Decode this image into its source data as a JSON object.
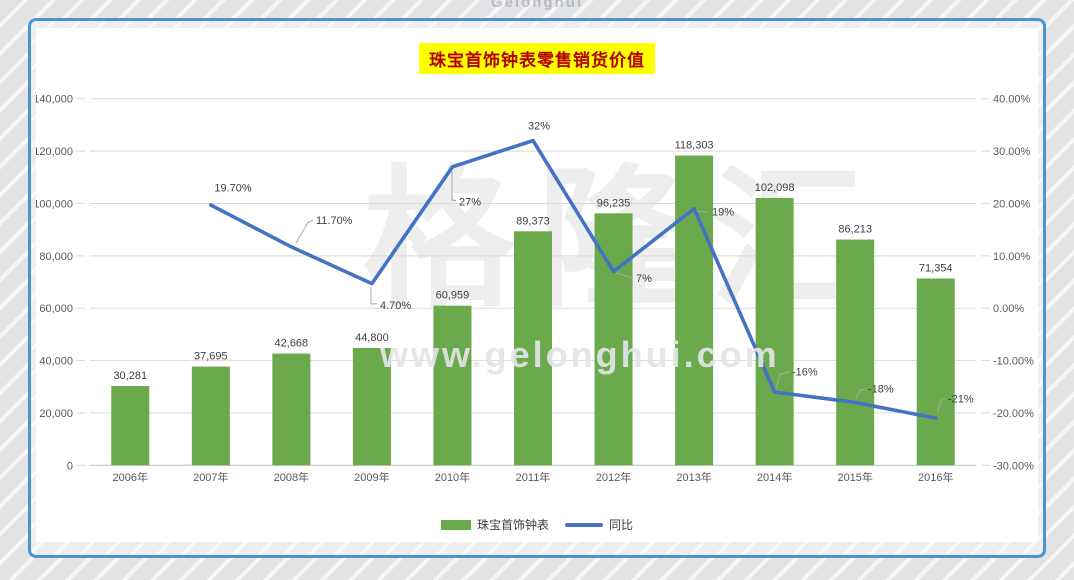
{
  "watermarks": {
    "top": "Gelonghui",
    "brand": "格隆汇",
    "url": "www.gelonghui.com"
  },
  "colors": {
    "bar_green": "#6aaa4d",
    "line_blue": "#4472c4",
    "title_text": "#b30000",
    "title_highlight": "#ffff00",
    "card_border": "#4f93ce",
    "gridline": "#d9d9d9",
    "axis_text": "#595959",
    "data_label_text": "#3f3f3f"
  },
  "chart_data": {
    "type": "combo-bar-line",
    "title": "珠宝首饰钟表零售销货价值",
    "categories": [
      "2006年",
      "2007年",
      "2008年",
      "2009年",
      "2010年",
      "2011年",
      "2012年",
      "2013年",
      "2014年",
      "2015年",
      "2016年"
    ],
    "series": [
      {
        "name": "珠宝首饰钟表",
        "type": "bar",
        "axis": "left",
        "color": "#6aaa4d",
        "values": [
          30281,
          37695,
          42668,
          44800,
          60959,
          89373,
          96235,
          118303,
          102098,
          86213,
          71354
        ],
        "labels": [
          "30,281",
          "37,695",
          "42,668",
          "44,800",
          "60,959",
          "89,373",
          "96,235",
          "118,303",
          "102,098",
          "86,213",
          "71,354"
        ]
      },
      {
        "name": "同比",
        "type": "line",
        "axis": "right",
        "color": "#4472c4",
        "values": [
          null,
          19.7,
          11.7,
          4.7,
          27,
          32,
          7,
          19,
          -16,
          -18,
          -21
        ],
        "labels": [
          null,
          "19.70%",
          "11.70%",
          "4.70%",
          "27%",
          "32%",
          "7%",
          "19%",
          "-16%",
          "-18%",
          "-21%"
        ]
      }
    ],
    "left_axis": {
      "min": 0,
      "max": 140000,
      "step": 20000,
      "tick_labels": [
        "0",
        "20,000",
        "40,000",
        "60,000",
        "80,000",
        "100,000",
        "120,000",
        "140,000"
      ]
    },
    "right_axis": {
      "min": -30,
      "max": 40,
      "step": 10,
      "tick_labels": [
        "-30.00%",
        "-20.00%",
        "-10.00%",
        "0.00%",
        "10.00%",
        "20.00%",
        "30.00%",
        "40.00%"
      ]
    },
    "legend": {
      "position": "bottom",
      "items": [
        "珠宝首饰钟表",
        "同比"
      ]
    },
    "grid": true
  }
}
